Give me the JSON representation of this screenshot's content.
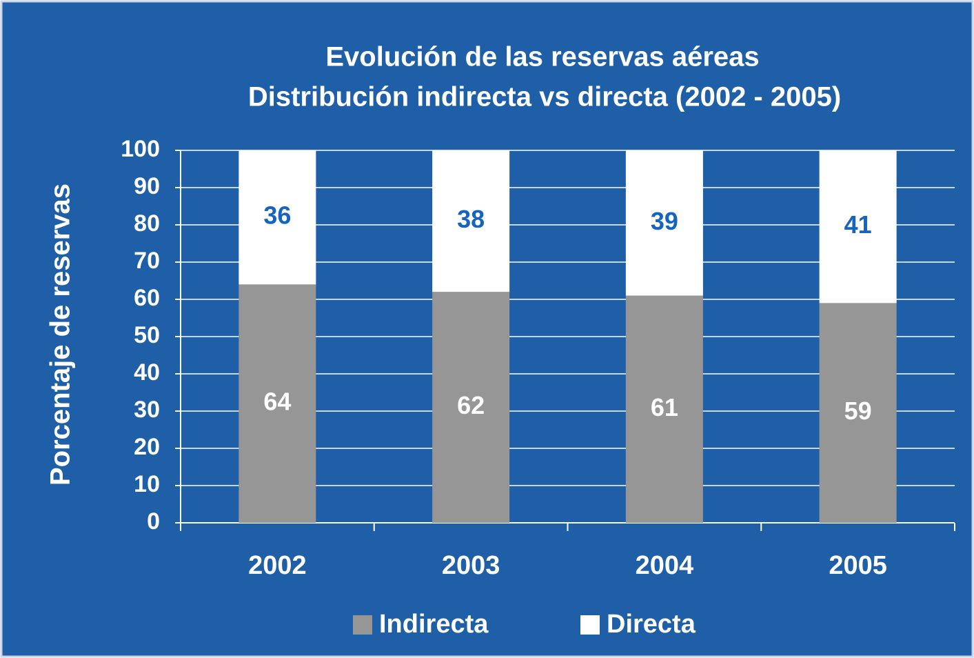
{
  "chart_data": {
    "type": "stacked_bar",
    "title": "Evolución de las reservas aéreas",
    "subtitle": "Distribución indirecta vs directa (2002 - 2005)",
    "y_label": "Porcentaje de reservas",
    "categories": [
      "2002",
      "2003",
      "2004",
      "2005"
    ],
    "series": [
      {
        "name": "Indirecta",
        "color": "#969696",
        "label_color": "#ffffff",
        "values": [
          64,
          62,
          61,
          59
        ]
      },
      {
        "name": "Directa",
        "color": "#ffffff",
        "label_color": "#1565c0",
        "values": [
          36,
          38,
          39,
          41
        ]
      }
    ],
    "ylim": [
      0,
      100
    ],
    "yticks": [
      0,
      10,
      20,
      30,
      40,
      50,
      60,
      70,
      80,
      90,
      100
    ],
    "grid": true,
    "legend": "bottom",
    "background": "#1f5fa8"
  }
}
